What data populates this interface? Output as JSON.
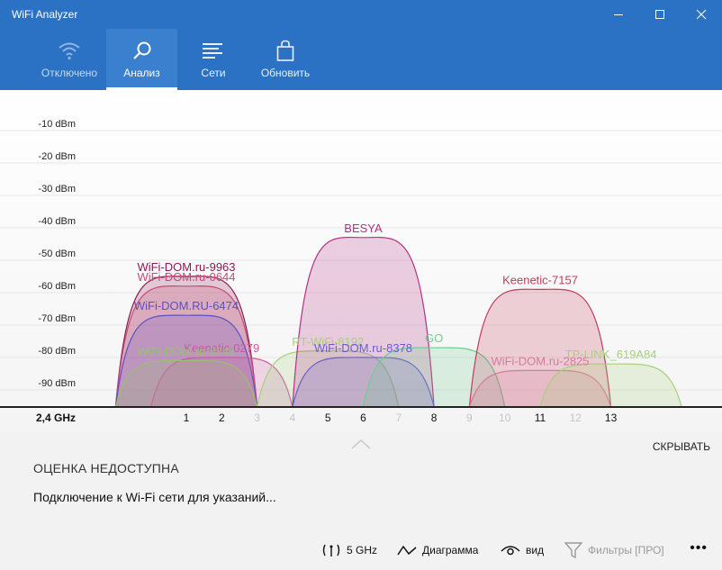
{
  "window": {
    "title": "WiFi Analyzer"
  },
  "tabs": [
    {
      "id": "disconnected",
      "label": "Отключено",
      "icon": "wifi-icon",
      "state": "dim"
    },
    {
      "id": "analysis",
      "label": "Анализ",
      "icon": "search-icon",
      "state": "active"
    },
    {
      "id": "networks",
      "label": "Сети",
      "icon": "list-icon",
      "state": "normal"
    },
    {
      "id": "update",
      "label": "Обновить",
      "icon": "bag-icon",
      "state": "normal"
    }
  ],
  "chart_data": {
    "type": "area",
    "band_label": "2,4 GHz",
    "y_unit": "dBm",
    "y_ticks": [
      -10,
      -20,
      -30,
      -40,
      -50,
      -60,
      -70,
      -80,
      -90
    ],
    "y_tick_labels": [
      "-10 dBm",
      "-20 dBm",
      "-30 dBm",
      "-40 dBm",
      "-50 dBm",
      "-60 dBm",
      "-70 dBm",
      "-80 dBm",
      "-90 dBm"
    ],
    "ylim": [
      -100,
      -5
    ],
    "x_channels": [
      1,
      2,
      3,
      4,
      5,
      6,
      7,
      8,
      9,
      10,
      11,
      12,
      13
    ],
    "x_channels_highlighted": [
      1,
      2,
      5,
      6,
      8,
      11,
      13
    ],
    "grid": true,
    "series": [
      {
        "name": "WiFi-DOM.ru-9963",
        "channel": 1,
        "dbm": -55,
        "color": "#8b1b50"
      },
      {
        "name": "WiFi-DOM.ru-0644",
        "channel": 1,
        "dbm": -58,
        "color": "#c44b74"
      },
      {
        "name": "WiFi-DOM.RU-6474",
        "channel": 1,
        "dbm": -67,
        "color": "#5d4fc2"
      },
      {
        "name": "Keenetic-0279",
        "channel": 2,
        "dbm": -80,
        "color": "#c85aa8"
      },
      {
        "name": "WiFi-DOM.ru-6741",
        "channel": 1,
        "dbm": -81,
        "color": "#98c26a"
      },
      {
        "name": "RT-WiFi-8192",
        "channel": 5,
        "dbm": -78,
        "color": "#a8d07c"
      },
      {
        "name": "BESYA",
        "channel": 6,
        "dbm": -43,
        "color": "#b52f86"
      },
      {
        "name": "WiFi-DOM.ru-8378",
        "channel": 6,
        "dbm": -80,
        "color": "#6a5fcc"
      },
      {
        "name": "GO",
        "channel": 8,
        "dbm": -77,
        "color": "#6ccf8f"
      },
      {
        "name": "Keenetic-7157",
        "channel": 11,
        "dbm": -59,
        "color": "#c73a5c"
      },
      {
        "name": "WiFi-DOM.ru-2825",
        "channel": 11,
        "dbm": -84,
        "color": "#d6799a"
      },
      {
        "name": "TP-LINK_619A84",
        "channel": 13,
        "dbm": -82,
        "color": "#a8d07c"
      }
    ]
  },
  "info": {
    "hide_label": "СКРЫВАТЬ",
    "rating": "ОЦЕНКА НЕДОСТУПНА",
    "hint": "Подключение к Wi-Fi сети для указаний..."
  },
  "toolbar": {
    "band": "5 GHz",
    "diagram": "Диаграмма",
    "view": "вид",
    "filters": "Фильтры [ПРО]",
    "more": "•••"
  }
}
